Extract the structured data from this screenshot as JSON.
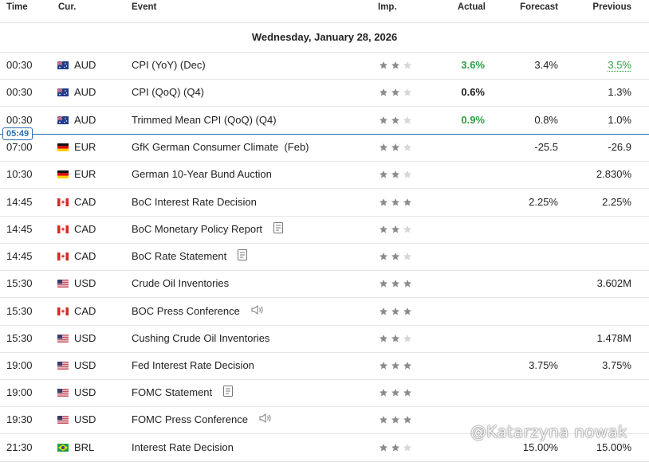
{
  "header": {
    "time": "Time",
    "currency": "Cur.",
    "event": "Event",
    "importance": "Imp.",
    "actual": "Actual",
    "forecast": "Forecast",
    "previous": "Previous"
  },
  "date_heading": "Wednesday, January 28, 2026",
  "now_marker": "05:49",
  "watermark": "@Katarzyna nowak",
  "colors": {
    "positive": "#2f9e44",
    "now_line": "#2b6cb0",
    "star_filled": "#8c8c8c",
    "star_empty": "#d6d6d6"
  },
  "events": [
    {
      "time": "00:30",
      "flag": "AU",
      "currency": "AUD",
      "event": "CPI (YoY) (Dec)",
      "importance": 2,
      "actual": "3.6%",
      "actual_color": "green",
      "forecast": "3.4%",
      "previous": "3.5%",
      "previous_color": "green",
      "icon": ""
    },
    {
      "time": "00:30",
      "flag": "AU",
      "currency": "AUD",
      "event": "CPI (QoQ) (Q4)",
      "importance": 2,
      "actual": "0.6%",
      "actual_color": "",
      "forecast": "",
      "previous": "1.3%",
      "previous_color": "",
      "icon": ""
    },
    {
      "time": "00:30",
      "flag": "AU",
      "currency": "AUD",
      "event": "Trimmed Mean CPI (QoQ) (Q4)",
      "importance": 2,
      "actual": "0.9%",
      "actual_color": "green",
      "forecast": "0.8%",
      "previous": "1.0%",
      "previous_color": "",
      "icon": ""
    },
    {
      "time": "07:00",
      "flag": "DE",
      "currency": "EUR",
      "event": "GfK German Consumer Climate  (Feb)",
      "importance": 2,
      "actual": "",
      "actual_color": "",
      "forecast": "-25.5",
      "previous": "-26.9",
      "previous_color": "",
      "icon": ""
    },
    {
      "time": "10:30",
      "flag": "DE",
      "currency": "EUR",
      "event": "German 10-Year Bund Auction",
      "importance": 2,
      "actual": "",
      "actual_color": "",
      "forecast": "",
      "previous": "2.830%",
      "previous_color": "",
      "icon": ""
    },
    {
      "time": "14:45",
      "flag": "CA",
      "currency": "CAD",
      "event": "BoC Interest Rate Decision",
      "importance": 3,
      "actual": "",
      "actual_color": "",
      "forecast": "2.25%",
      "previous": "2.25%",
      "previous_color": "",
      "icon": ""
    },
    {
      "time": "14:45",
      "flag": "CA",
      "currency": "CAD",
      "event": "BoC Monetary Policy Report",
      "importance": 2,
      "actual": "",
      "actual_color": "",
      "forecast": "",
      "previous": "",
      "previous_color": "",
      "icon": "doc"
    },
    {
      "time": "14:45",
      "flag": "CA",
      "currency": "CAD",
      "event": "BoC Rate Statement",
      "importance": 2,
      "actual": "",
      "actual_color": "",
      "forecast": "",
      "previous": "",
      "previous_color": "",
      "icon": "doc"
    },
    {
      "time": "15:30",
      "flag": "US",
      "currency": "USD",
      "event": "Crude Oil Inventories",
      "importance": 3,
      "actual": "",
      "actual_color": "",
      "forecast": "",
      "previous": "3.602M",
      "previous_color": "",
      "icon": ""
    },
    {
      "time": "15:30",
      "flag": "CA",
      "currency": "CAD",
      "event": "BOC Press Conference",
      "importance": 3,
      "actual": "",
      "actual_color": "",
      "forecast": "",
      "previous": "",
      "previous_color": "",
      "icon": "speaker"
    },
    {
      "time": "15:30",
      "flag": "US",
      "currency": "USD",
      "event": "Cushing Crude Oil Inventories",
      "importance": 2,
      "actual": "",
      "actual_color": "",
      "forecast": "",
      "previous": "1.478M",
      "previous_color": "",
      "icon": ""
    },
    {
      "time": "19:00",
      "flag": "US",
      "currency": "USD",
      "event": "Fed Interest Rate Decision",
      "importance": 3,
      "actual": "",
      "actual_color": "",
      "forecast": "3.75%",
      "previous": "3.75%",
      "previous_color": "",
      "icon": ""
    },
    {
      "time": "19:00",
      "flag": "US",
      "currency": "USD",
      "event": "FOMC Statement",
      "importance": 3,
      "actual": "",
      "actual_color": "",
      "forecast": "",
      "previous": "",
      "previous_color": "",
      "icon": "doc"
    },
    {
      "time": "19:30",
      "flag": "US",
      "currency": "USD",
      "event": "FOMC Press Conference",
      "importance": 3,
      "actual": "",
      "actual_color": "",
      "forecast": "",
      "previous": "",
      "previous_color": "",
      "icon": "speaker"
    },
    {
      "time": "21:30",
      "flag": "BR",
      "currency": "BRL",
      "event": "Interest Rate Decision",
      "importance": 2,
      "actual": "",
      "actual_color": "",
      "forecast": "15.00%",
      "previous": "15.00%",
      "previous_color": "",
      "icon": ""
    }
  ]
}
